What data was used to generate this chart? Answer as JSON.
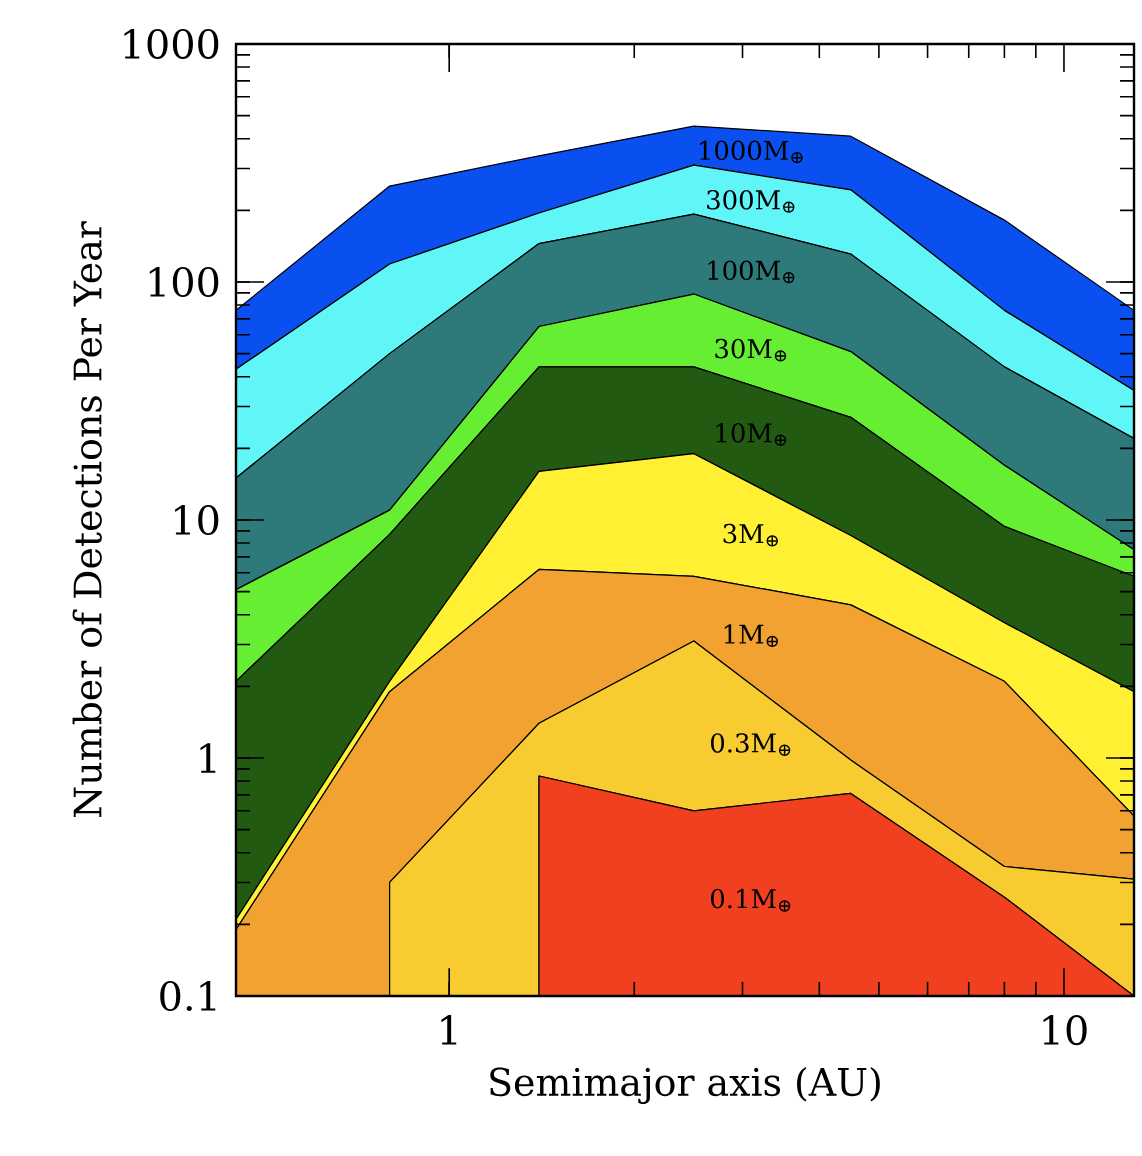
{
  "chart_data": {
    "type": "area",
    "xlabel": "Semimajor axis (AU)",
    "ylabel": "Number of Detections Per Year",
    "log": "xy",
    "xlim": [
      0.45,
      13
    ],
    "ylim": [
      0.1,
      1000
    ],
    "xticks": [
      1,
      10
    ],
    "yticks": [
      0.1,
      1,
      10,
      100,
      1000
    ],
    "series": [
      {
        "name": "1000M$_{⊕}$",
        "color": "#0a50f0",
        "x": [
          0.45,
          0.8,
          1.4,
          2.5,
          4.5,
          8,
          13
        ],
        "values": [
          76,
          253,
          339,
          452,
          410,
          182,
          76
        ]
      },
      {
        "name": "300M$_{⊕}$",
        "color": "#60f6f8",
        "x": [
          0.45,
          0.8,
          1.4,
          2.5,
          4.5,
          8,
          13
        ],
        "values": [
          43,
          119,
          195,
          310,
          244,
          76,
          35
        ]
      },
      {
        "name": "100M$_{⊕}$",
        "color": "#2e7a7a",
        "x": [
          0.45,
          0.8,
          1.4,
          2.5,
          4.5,
          8,
          13
        ],
        "values": [
          15,
          50,
          145,
          193,
          131,
          44,
          22
        ]
      },
      {
        "name": "30M$_{⊕}$",
        "color": "#66ee33",
        "x": [
          0.45,
          0.8,
          1.4,
          2.5,
          4.5,
          8,
          13
        ],
        "values": [
          5.1,
          11,
          65,
          89,
          51,
          17,
          7.5
        ]
      },
      {
        "name": "10M$_{⊕}$",
        "color": "#225a11",
        "x": [
          0.45,
          0.8,
          1.4,
          2.5,
          4.5,
          8,
          13
        ],
        "values": [
          2.1,
          8.7,
          44,
          44,
          27,
          9.4,
          5.8
        ]
      },
      {
        "name": "3M$_{⊕}$",
        "color": "#fff033",
        "x": [
          0.45,
          0.8,
          1.4,
          2.5,
          4.5,
          8,
          13
        ],
        "values": [
          0.21,
          2.1,
          16,
          19,
          8.6,
          3.7,
          1.9
        ]
      },
      {
        "name": "1M$_{⊕}$",
        "color": "#f2a230",
        "x": [
          0.45,
          0.8,
          1.4,
          2.5,
          4.5,
          8,
          13
        ],
        "values": [
          0.19,
          1.9,
          6.2,
          5.8,
          4.4,
          2.1,
          0.57
        ]
      },
      {
        "name": "0.3M$_{⊕}$",
        "color": "#f8cc30",
        "x": [
          0.8,
          0.8,
          1.4,
          2.5,
          4.5,
          8,
          13
        ],
        "values": [
          0.1,
          0.3,
          1.4,
          3.1,
          0.98,
          0.35,
          0.31
        ]
      },
      {
        "name": "0.1M$_{⊕}$",
        "color": "#f04020",
        "x": [
          1.4,
          1.4,
          2.5,
          4.5,
          8,
          13
        ],
        "values": [
          0.1,
          0.84,
          0.6,
          0.71,
          0.26,
          0.1
        ]
      }
    ]
  }
}
